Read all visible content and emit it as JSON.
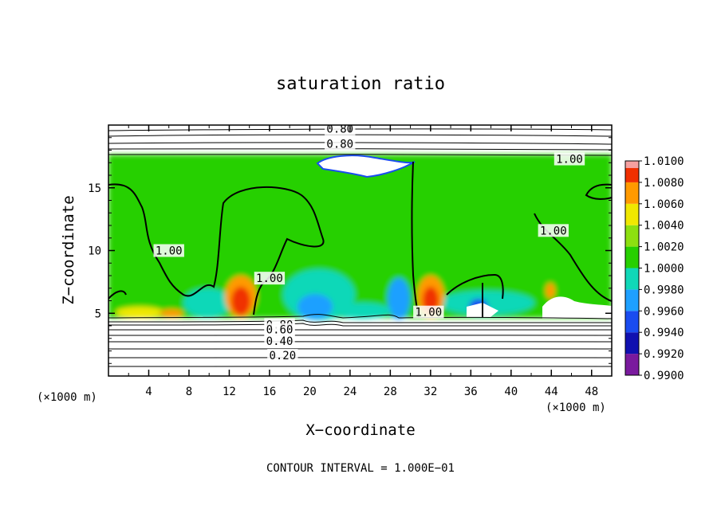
{
  "chart_data": {
    "type": "heatmap",
    "title": "saturation ratio",
    "xlabel": "X−coordinate",
    "ylabel": "Z−coordinate",
    "x_unit_left": "(×1000 m)",
    "x_unit_right": "(×1000 m)",
    "footer": "CONTOUR INTERVAL = 1.000E−01",
    "xlim": [
      0,
      50
    ],
    "ylim": [
      0,
      20
    ],
    "x_ticks": [
      4,
      8,
      12,
      16,
      20,
      24,
      28,
      32,
      36,
      40,
      44,
      48
    ],
    "x_tick_labels": [
      "4",
      "8",
      "12",
      "16",
      "20",
      "24",
      "28",
      "32",
      "36",
      "40",
      "44",
      "48"
    ],
    "y_ticks": [
      5,
      10,
      15
    ],
    "y_tick_labels": [
      "5",
      "10",
      "15"
    ],
    "colorbar": {
      "levels": [
        0.99,
        0.992,
        0.994,
        0.996,
        0.998,
        1.0,
        1.002,
        1.004,
        1.006,
        1.008,
        1.01
      ],
      "labels": [
        "0.9900",
        "0.9920",
        "0.9940",
        "0.9960",
        "0.9980",
        "1.0000",
        "1.0020",
        "1.0040",
        "1.0060",
        "1.0080",
        "1.0100"
      ],
      "colors": [
        "#7a1a9e",
        "#1010b0",
        "#1a4cf0",
        "#1ea0ff",
        "#10d8b8",
        "#27d000",
        "#8de010",
        "#f0e800",
        "#ff9a00",
        "#f03000",
        "#f5a0a0"
      ]
    },
    "contour_labels": [
      {
        "text": "0.80",
        "x": 23,
        "y": 19.7
      },
      {
        "text": "0.80",
        "x": 23,
        "y": 18.5
      },
      {
        "text": "1.00",
        "x": 45.8,
        "y": 17.3
      },
      {
        "text": "1.00",
        "x": 44.2,
        "y": 11.6
      },
      {
        "text": "1.00",
        "x": 6.0,
        "y": 10.0
      },
      {
        "text": "1.00",
        "x": 16.0,
        "y": 7.8
      },
      {
        "text": "1.00",
        "x": 31.8,
        "y": 5.1
      },
      {
        "text": "0.80",
        "x": 17.0,
        "y": 4.1
      },
      {
        "text": "0.60",
        "x": 17.0,
        "y": 3.7
      },
      {
        "text": "0.40",
        "x": 17.0,
        "y": 2.8
      },
      {
        "text": "0.20",
        "x": 17.3,
        "y": 1.65
      }
    ]
  }
}
